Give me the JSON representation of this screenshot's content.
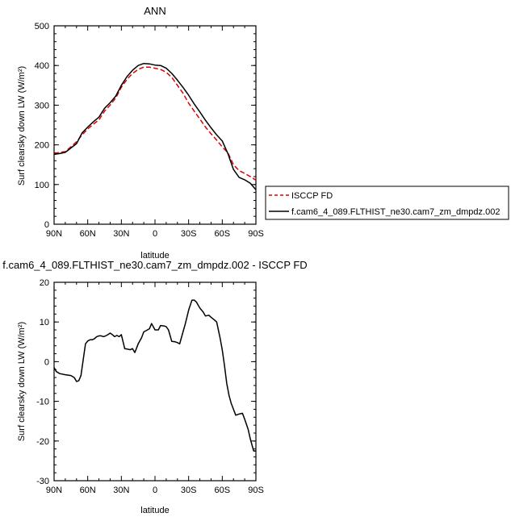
{
  "chart_data": [
    {
      "type": "line",
      "title": "ANN",
      "xlabel": "latitude",
      "ylabel": "Surf clearsky down LW (W/m²)",
      "xlim": [
        90,
        -90
      ],
      "ylim": [
        0,
        500
      ],
      "xticks": [
        90,
        60,
        30,
        0,
        -30,
        -60,
        -90
      ],
      "xtick_labels": [
        "90N",
        "60N",
        "30N",
        "0",
        "30S",
        "60S",
        "90S"
      ],
      "yticks": [
        0,
        100,
        200,
        300,
        400,
        500
      ],
      "ytick_labels": [
        "0",
        "100",
        "200",
        "300",
        "400",
        "500"
      ],
      "legend_placement": "right",
      "series": [
        {
          "name": "ISCCP FD",
          "color": "#e00000",
          "dash": "dashed",
          "x": [
            90,
            85,
            80,
            75,
            70,
            65,
            60,
            55,
            50,
            45,
            40,
            35,
            30,
            25,
            20,
            15,
            10,
            5,
            0,
            -5,
            -10,
            -15,
            -20,
            -25,
            -30,
            -35,
            -40,
            -45,
            -50,
            -55,
            -60,
            -65,
            -70,
            -75,
            -80,
            -85,
            -90
          ],
          "values": [
            178,
            181,
            183,
            195,
            208,
            225,
            240,
            252,
            263,
            285,
            300,
            318,
            345,
            365,
            380,
            390,
            396,
            396,
            393,
            390,
            383,
            370,
            350,
            330,
            305,
            285,
            265,
            245,
            228,
            212,
            195,
            180,
            150,
            135,
            128,
            120,
            111
          ]
        },
        {
          "name": "f.cam6_4_089.FLTHIST_ne30.cam7_zm_dmpdz.002",
          "color": "#000000",
          "dash": "solid",
          "x": [
            90,
            85,
            80,
            75,
            70,
            65,
            60,
            55,
            50,
            45,
            40,
            35,
            30,
            25,
            20,
            15,
            10,
            5,
            0,
            -5,
            -10,
            -15,
            -20,
            -25,
            -30,
            -35,
            -40,
            -45,
            -50,
            -55,
            -60,
            -65,
            -70,
            -75,
            -80,
            -85,
            -90
          ],
          "values": [
            176,
            178,
            181,
            192,
            203,
            230,
            245,
            258,
            270,
            292,
            306,
            323,
            350,
            372,
            388,
            400,
            405,
            404,
            401,
            400,
            393,
            380,
            363,
            345,
            325,
            303,
            283,
            262,
            243,
            225,
            210,
            178,
            138,
            118,
            112,
            103,
            87
          ]
        }
      ]
    },
    {
      "type": "line",
      "title": "f.cam6_4_089.FLTHIST_ne30.cam7_zm_dmpdz.002 - ISCCP FD",
      "xlabel": "latitude",
      "ylabel": "Surf clearsky down LW (W/m²)",
      "xlim": [
        90,
        -90
      ],
      "ylim": [
        -30,
        20
      ],
      "xticks": [
        90,
        60,
        30,
        0,
        -30,
        -60,
        -90
      ],
      "xtick_labels": [
        "90N",
        "60N",
        "30N",
        "0",
        "30S",
        "60S",
        "90S"
      ],
      "yticks": [
        -30,
        -20,
        -10,
        0,
        10,
        20
      ],
      "ytick_labels": [
        "-30",
        "-20",
        "-10",
        "0",
        "10",
        "20"
      ],
      "series": [
        {
          "color": "#000000",
          "dash": "solid",
          "x": [
            90,
            88,
            85,
            80,
            75,
            72,
            70,
            68,
            66,
            64,
            62,
            60,
            58,
            56,
            54,
            52,
            50,
            48,
            46,
            44,
            42,
            40,
            38,
            36,
            34,
            32,
            30,
            27,
            25,
            22,
            20,
            18,
            15,
            12,
            10,
            8,
            5,
            3,
            0,
            -3,
            -5,
            -8,
            -10,
            -12,
            -15,
            -18,
            -20,
            -22,
            -25,
            -27,
            -30,
            -33,
            -35,
            -37,
            -40,
            -43,
            -45,
            -48,
            -50,
            -53,
            -55,
            -58,
            -60,
            -62,
            -64,
            -66,
            -68,
            -70,
            -72,
            -75,
            -78,
            -80,
            -83,
            -85,
            -88,
            -90
          ],
          "values": [
            -1.5,
            -2.5,
            -3.0,
            -3.3,
            -3.5,
            -4.0,
            -5.0,
            -4.8,
            -3.5,
            0.5,
            4.5,
            5.2,
            5.5,
            5.5,
            5.8,
            6.3,
            6.5,
            6.5,
            6.3,
            6.5,
            6.8,
            7.2,
            6.8,
            6.3,
            6.6,
            6.3,
            6.8,
            3.3,
            3.2,
            3.0,
            3.3,
            2.3,
            4.5,
            6.0,
            7.5,
            7.8,
            8.3,
            9.6,
            8.0,
            8.0,
            9.1,
            9.0,
            8.8,
            8.0,
            5.1,
            5.0,
            4.8,
            4.5,
            7.5,
            9.5,
            13.0,
            15.5,
            15.5,
            15.0,
            13.5,
            12.5,
            11.5,
            11.7,
            11.2,
            10.5,
            10.0,
            6.0,
            3.0,
            -1.0,
            -5.5,
            -8.5,
            -10.5,
            -12.0,
            -13.5,
            -13.2,
            -13.0,
            -14.5,
            -17.0,
            -19.5,
            -22.5,
            -22.5
          ]
        }
      ]
    }
  ]
}
